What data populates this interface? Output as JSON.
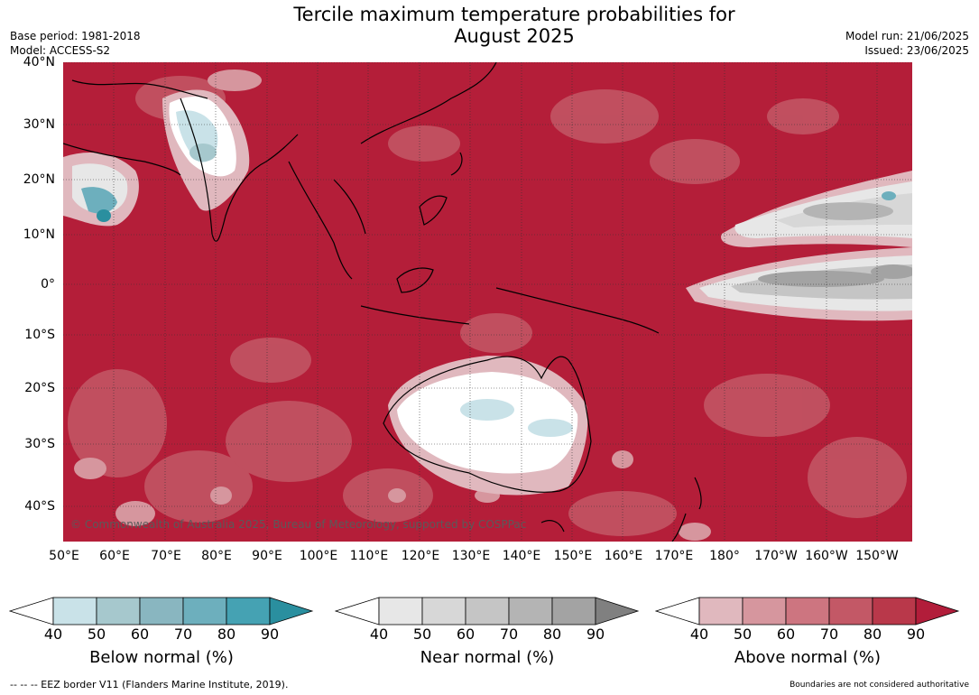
{
  "title_line1": "Tercile maximum temperature probabilities for",
  "title_line2": "August 2025",
  "base_period": "Base period: 1981-2018",
  "model": "Model: ACCESS-S2",
  "model_run": "Model run: 21/06/2025",
  "issued": "Issued: 23/06/2025",
  "copyright": "© Commonwealth of Australia 2025, Bureau of Meteorology, supported by COSPPac",
  "footer_left": "--  --  -- EEZ border V11 (Flanders Marine Institute, 2019).",
  "footer_right": "Boundaries are not considered authoritative",
  "lat_labels": [
    "40°N",
    "30°N",
    "20°N",
    "10°N",
    "0°",
    "10°S",
    "20°S",
    "30°S",
    "40°S"
  ],
  "lon_labels": [
    "50°E",
    "60°E",
    "70°E",
    "80°E",
    "90°E",
    "100°E",
    "110°E",
    "120°E",
    "130°E",
    "140°E",
    "150°E",
    "160°E",
    "170°E",
    "180°",
    "170°W",
    "160°W",
    "150°W"
  ],
  "colorbars": [
    {
      "title": "Below normal (%)",
      "ticks": [
        "40",
        "50",
        "60",
        "70",
        "80",
        "90"
      ],
      "colors": [
        "#c9e2e8",
        "#a6c8cd",
        "#89b6c0",
        "#6dafbd",
        "#45a2b3",
        "#2a8f9f"
      ]
    },
    {
      "title": "Near normal (%)",
      "ticks": [
        "40",
        "50",
        "60",
        "70",
        "80",
        "90"
      ],
      "colors": [
        "#e7e7e7",
        "#d7d7d7",
        "#c5c5c5",
        "#b4b4b4",
        "#a3a3a3",
        "#808080"
      ]
    },
    {
      "title": "Above normal (%)",
      "ticks": [
        "40",
        "50",
        "60",
        "70",
        "80",
        "90"
      ],
      "colors": [
        "#e0b8be",
        "#d6969e",
        "#cd7580",
        "#c35866",
        "#b9384a",
        "#b21d3a"
      ]
    }
  ],
  "colors": {
    "dominant_map": "#b41e39",
    "coast": "#000000",
    "grid": "#333333"
  }
}
